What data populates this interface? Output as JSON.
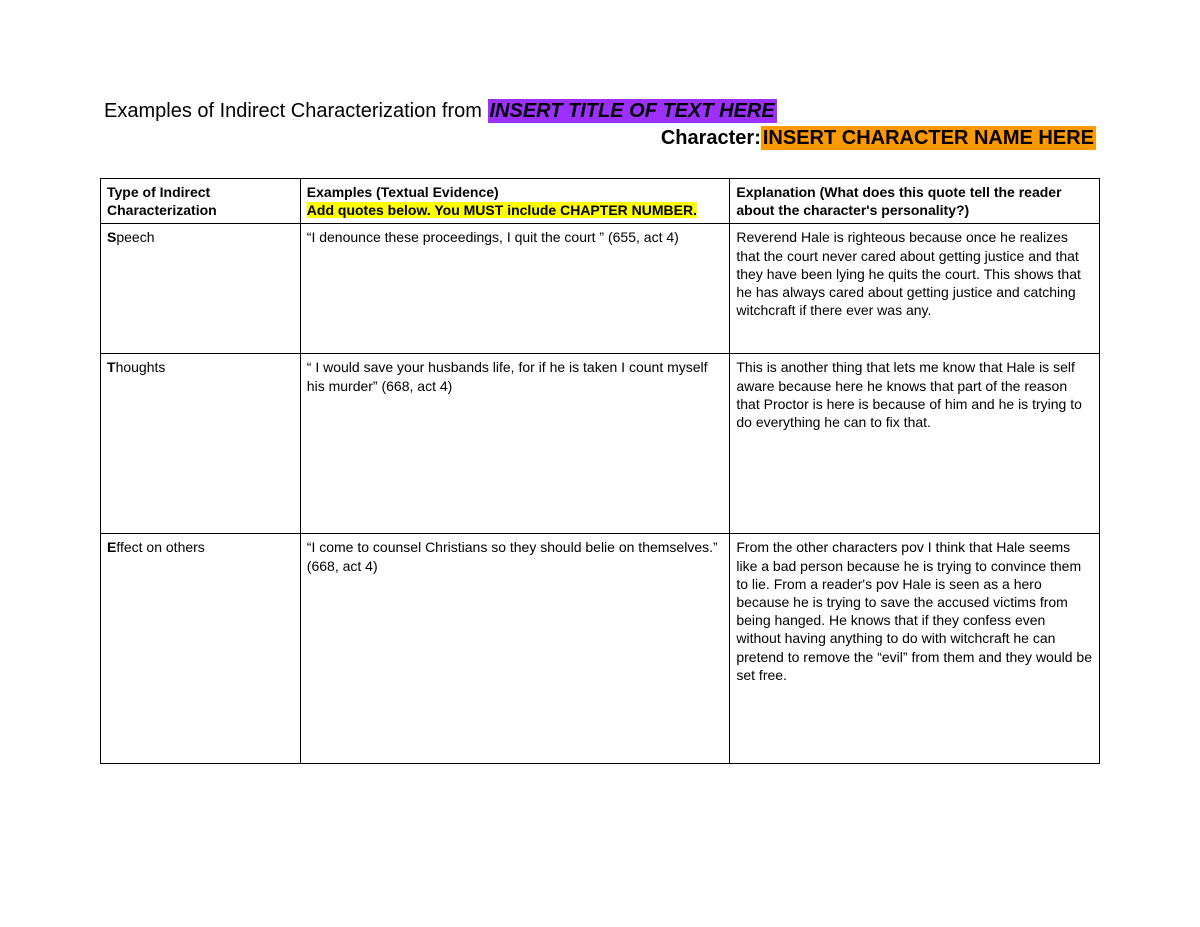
{
  "title": {
    "prefix": "Examples of Indirect Characterization from ",
    "placeholder": "INSERT TITLE OF TEXT HERE"
  },
  "character": {
    "label": "Character:",
    "placeholder": "INSERT CHARACTER NAME HERE"
  },
  "table": {
    "headers": {
      "type": "Type of Indirect Characterization",
      "examples_line1": "Examples (Textual Evidence)",
      "examples_line2": "Add quotes below. You MUST include CHAPTER NUMBER.",
      "explanation_line1": "Explanation (",
      "explanation_bold": "W",
      "explanation_line1_rest": "hat does this quote tell the reader about the character's personality?)"
    },
    "rows": [
      {
        "type_bold": "S",
        "type_rest": "peech",
        "example": "“I denounce these proceedings, I quit the court ” (655, act 4)",
        "explanation": "Reverend Hale is righteous because once he realizes that the court never cared about getting justice and that they have been lying he quits the court. This shows that he has always cared about getting justice and catching witchcraft if there ever was any."
      },
      {
        "type_bold": "T",
        "type_rest": "houghts",
        "example": "“ I would save your husbands life, for if he is taken I count myself his murder” (668, act 4)",
        "explanation": "This is another thing that lets me know that Hale is self aware because here he knows that part of the reason that Proctor is here is because of him and he is trying to do everything he can to fix that."
      },
      {
        "type_bold": "E",
        "type_rest": "ffect on others",
        "example": "“I come to counsel Christians so they should belie on themselves.” (668, act 4)",
        "explanation": "From the other characters pov I think that Hale seems like a bad person because he is trying to convince them to lie. From a reader's pov Hale is seen as a hero because he is trying to save the accused victims from being hanged. He knows that if they confess even without having anything to do with witchcraft he can pretend to remove the “evil” from them and they would be set free."
      }
    ],
    "column_widths": {
      "type": "20%",
      "examples": "43%",
      "explanation": "37%"
    },
    "colors": {
      "purple_highlight": "#9b30ff",
      "orange_highlight": "#ff9900",
      "yellow_highlight": "#ffff00",
      "border": "#000000",
      "background": "#ffffff"
    },
    "typography": {
      "title_fontsize": 20,
      "body_fontsize": 14,
      "font_family": "Verdana"
    }
  }
}
